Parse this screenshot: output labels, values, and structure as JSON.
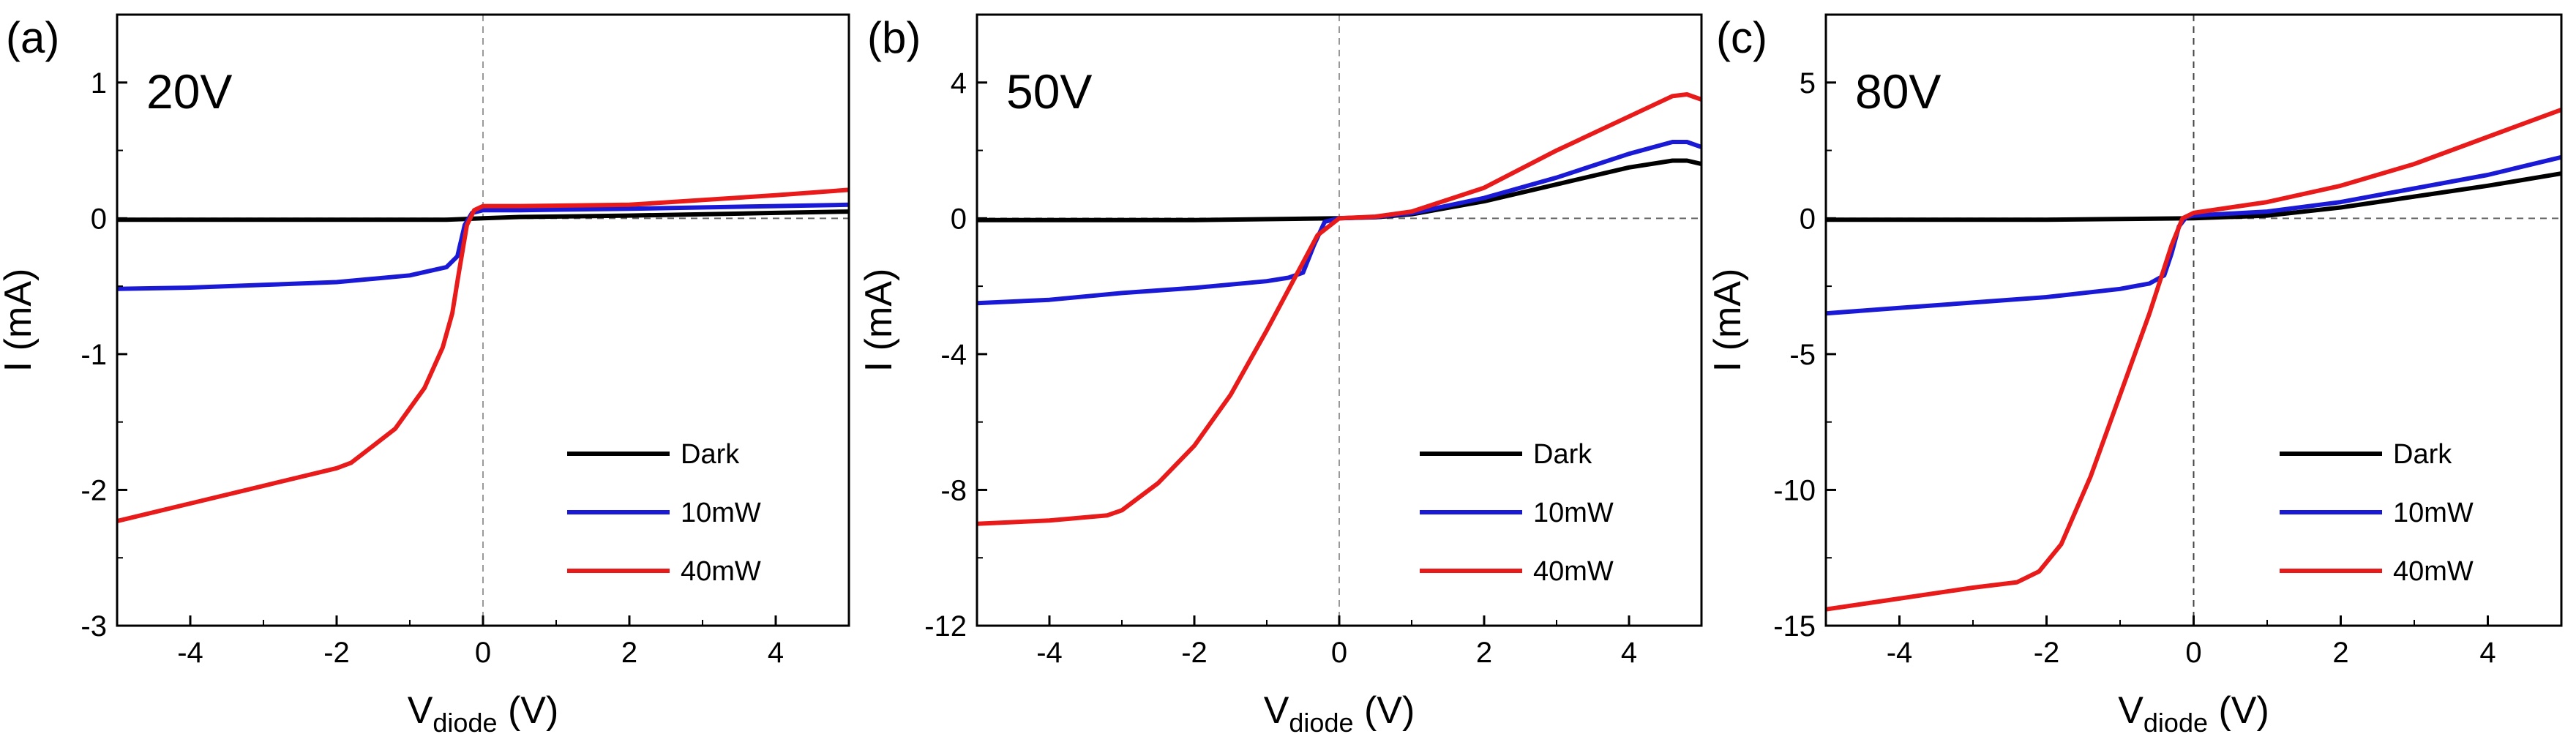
{
  "figure": {
    "panels": [
      "(a)",
      "(b)",
      "(c)"
    ]
  },
  "chart_data": [
    {
      "type": "line",
      "panel_label": "(a)",
      "title": "20V",
      "xlabel": {
        "main": "V",
        "sub": "diode",
        "unit": " (V)"
      },
      "ylabel": "I (mA)",
      "xlim": [
        -5,
        5
      ],
      "ylim": [
        -3,
        1.5
      ],
      "xticks": [
        -4,
        -2,
        0,
        2,
        4
      ],
      "yticks": [
        1,
        0,
        -1,
        -2,
        -3
      ],
      "xtick_labels": [
        "-4",
        "-2",
        "0",
        "2",
        "4"
      ],
      "ytick_labels": [
        "1",
        "0",
        "-1",
        "-2",
        "-3"
      ],
      "legend": [
        "Dark",
        "10mW",
        "40mW"
      ],
      "legend_position": "bottom-right",
      "series": [
        {
          "name": "Dark",
          "color": "#000000",
          "x": [
            -5,
            -2,
            -0.5,
            0,
            0.5,
            2,
            4,
            5
          ],
          "y": [
            -0.01,
            -0.01,
            -0.01,
            0.0,
            0.01,
            0.02,
            0.04,
            0.05
          ]
        },
        {
          "name": "10mW",
          "color": "#1a1ad6",
          "x": [
            -5,
            -4,
            -3,
            -2,
            -1,
            -0.5,
            -0.35,
            -0.25,
            -0.15,
            0,
            0.5,
            2,
            4,
            5
          ],
          "y": [
            -0.52,
            -0.51,
            -0.49,
            -0.47,
            -0.42,
            -0.36,
            -0.28,
            -0.05,
            0.04,
            0.06,
            0.06,
            0.07,
            0.09,
            0.1
          ]
        },
        {
          "name": "40mW",
          "color": "#e81a1a",
          "x": [
            -5,
            -4,
            -3,
            -2,
            -1.8,
            -1.2,
            -0.8,
            -0.55,
            -0.42,
            -0.33,
            -0.22,
            -0.12,
            0,
            0.5,
            2,
            4,
            5
          ],
          "y": [
            -2.23,
            -2.1,
            -1.97,
            -1.84,
            -1.8,
            -1.55,
            -1.25,
            -0.95,
            -0.7,
            -0.4,
            -0.05,
            0.06,
            0.09,
            0.09,
            0.1,
            0.17,
            0.21
          ]
        }
      ]
    },
    {
      "type": "line",
      "panel_label": "(b)",
      "title": "50V",
      "xlabel": {
        "main": "V",
        "sub": "diode",
        "unit": " (V)"
      },
      "ylabel": "I (mA)",
      "xlim": [
        -5,
        5
      ],
      "ylim": [
        -12,
        6
      ],
      "xticks": [
        -4,
        -2,
        0,
        2,
        4
      ],
      "yticks": [
        4,
        0,
        -4,
        -8,
        -12
      ],
      "xtick_labels": [
        "-4",
        "-2",
        "0",
        "2",
        "4"
      ],
      "ytick_labels": [
        "4",
        "0",
        "-4",
        "-8",
        "-12"
      ],
      "legend": [
        "Dark",
        "10mW",
        "40mW"
      ],
      "legend_position": "bottom-right",
      "series": [
        {
          "name": "Dark",
          "color": "#000000",
          "x": [
            -5,
            -2,
            0,
            0.5,
            1,
            2,
            3,
            4,
            4.6,
            4.8,
            5
          ],
          "y": [
            -0.05,
            -0.05,
            0.0,
            0.03,
            0.12,
            0.5,
            1.0,
            1.5,
            1.7,
            1.7,
            1.6
          ]
        },
        {
          "name": "10mW",
          "color": "#1a1ad6",
          "x": [
            -5,
            -4,
            -3,
            -2,
            -1,
            -0.7,
            -0.5,
            -0.35,
            -0.2,
            0,
            0.5,
            1,
            2,
            3,
            4,
            4.6,
            4.8,
            5
          ],
          "y": [
            -2.5,
            -2.4,
            -2.2,
            -2.05,
            -1.85,
            -1.75,
            -1.6,
            -0.8,
            -0.1,
            0.0,
            0.04,
            0.15,
            0.6,
            1.2,
            1.9,
            2.25,
            2.25,
            2.1
          ]
        },
        {
          "name": "40mW",
          "color": "#e81a1a",
          "x": [
            -5,
            -4,
            -3.2,
            -3,
            -2.5,
            -2,
            -1.5,
            -1,
            -0.6,
            -0.3,
            0,
            0.5,
            1,
            2,
            3,
            4,
            4.6,
            4.8,
            5
          ],
          "y": [
            -9.0,
            -8.9,
            -8.75,
            -8.6,
            -7.8,
            -6.7,
            -5.2,
            -3.3,
            -1.7,
            -0.5,
            0.0,
            0.05,
            0.2,
            0.9,
            2.0,
            3.0,
            3.6,
            3.65,
            3.5
          ]
        }
      ]
    },
    {
      "type": "line",
      "panel_label": "(c)",
      "title": "80V",
      "xlabel": {
        "main": "V",
        "sub": "diode",
        "unit": " (V)"
      },
      "ylabel": "I (mA)",
      "xlim": [
        -5,
        5
      ],
      "ylim": [
        -15,
        7.5
      ],
      "xticks": [
        -4,
        -2,
        0,
        2,
        4
      ],
      "yticks": [
        5,
        0,
        -5,
        -10,
        -15
      ],
      "xtick_labels": [
        "-4",
        "-2",
        "0",
        "2",
        "4"
      ],
      "ytick_labels": [
        "5",
        "0",
        "-5",
        "-10",
        "-15"
      ],
      "legend": [
        "Dark",
        "10mW",
        "40mW"
      ],
      "legend_position": "bottom-right",
      "series": [
        {
          "name": "Dark",
          "color": "#000000",
          "x": [
            -5,
            -2,
            0,
            1,
            2,
            3,
            4,
            5
          ],
          "y": [
            -0.05,
            -0.05,
            0.0,
            0.1,
            0.4,
            0.8,
            1.2,
            1.65
          ]
        },
        {
          "name": "10mW",
          "color": "#1a1ad6",
          "x": [
            -5,
            -4,
            -3,
            -2,
            -1,
            -0.6,
            -0.4,
            -0.3,
            -0.2,
            -0.1,
            0,
            1,
            2,
            3,
            4,
            5
          ],
          "y": [
            -3.5,
            -3.3,
            -3.1,
            -2.9,
            -2.6,
            -2.4,
            -2.1,
            -1.3,
            -0.3,
            0.05,
            0.1,
            0.25,
            0.6,
            1.1,
            1.6,
            2.25
          ]
        },
        {
          "name": "40mW",
          "color": "#e81a1a",
          "x": [
            -5,
            -4,
            -3,
            -2.4,
            -2.1,
            -1.8,
            -1.4,
            -1,
            -0.6,
            -0.3,
            -0.15,
            0,
            1,
            2,
            3,
            4,
            5
          ],
          "y": [
            -14.4,
            -14.0,
            -13.6,
            -13.4,
            -13.0,
            -12.0,
            -9.5,
            -6.5,
            -3.5,
            -1.0,
            0.0,
            0.2,
            0.6,
            1.2,
            2.0,
            3.0,
            4.0
          ]
        }
      ]
    }
  ]
}
